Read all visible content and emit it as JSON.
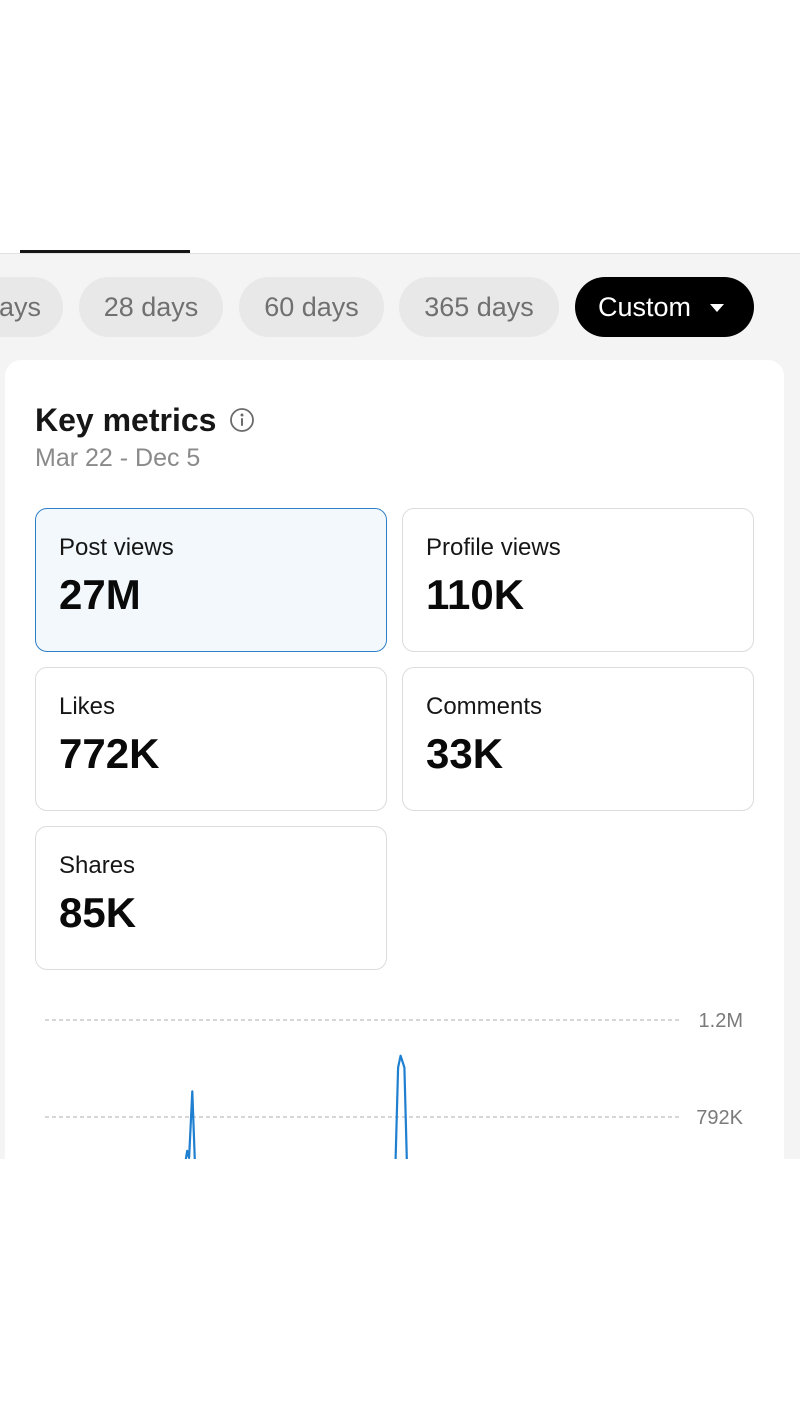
{
  "period_chips": [
    {
      "label": "ays"
    },
    {
      "label": "28 days"
    },
    {
      "label": "60 days"
    },
    {
      "label": "365 days"
    },
    {
      "label": "Custom",
      "selected": true
    }
  ],
  "key_metrics": {
    "title": "Key metrics",
    "date_range": "Mar 22 - Dec 5",
    "metrics": [
      {
        "label": "Post views",
        "value": "27M",
        "selected": true
      },
      {
        "label": "Profile views",
        "value": "110K"
      },
      {
        "label": "Likes",
        "value": "772K"
      },
      {
        "label": "Comments",
        "value": "33K"
      },
      {
        "label": "Shares",
        "value": "85K"
      }
    ]
  },
  "chart_data": {
    "type": "line",
    "title": "",
    "xlabel": "",
    "ylabel": "",
    "y_tick_labels": [
      "1.2M",
      "792K"
    ],
    "y_ticks": [
      1200000,
      792000
    ],
    "grid": "dashed horizontal",
    "series": [
      {
        "color": "#1f7fd0",
        "points": [
          {
            "x": 0.221,
            "y": 600000
          },
          {
            "x": 0.224,
            "y": 650000
          },
          {
            "x": 0.227,
            "y": 620000
          },
          {
            "x": 0.232,
            "y": 900000
          },
          {
            "x": 0.236,
            "y": 600000
          },
          {
            "x": 0.552,
            "y": 600000
          },
          {
            "x": 0.556,
            "y": 1000000
          },
          {
            "x": 0.56,
            "y": 1050000
          },
          {
            "x": 0.566,
            "y": 1000000
          },
          {
            "x": 0.57,
            "y": 600000
          }
        ]
      }
    ]
  },
  "colors": {
    "accent": "#2f7fc7",
    "series_line": "#1f7fd0",
    "selected_chip_bg": "#000000"
  }
}
